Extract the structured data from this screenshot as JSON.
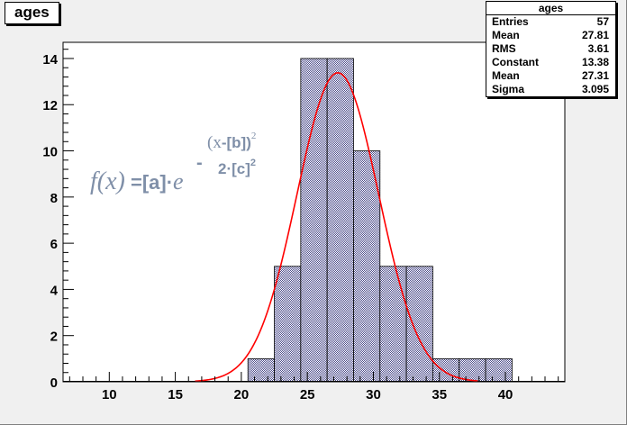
{
  "title": "ages",
  "stats": {
    "header": "ages",
    "rows": [
      {
        "label": "Entries",
        "value": "57"
      },
      {
        "label": "Mean",
        "value": "27.81"
      },
      {
        "label": "RMS",
        "value": "3.61"
      },
      {
        "label": "Constant",
        "value": "13.38"
      },
      {
        "label": "Mean",
        "value": "27.31"
      },
      {
        "label": "Sigma",
        "value": "3.095"
      }
    ]
  },
  "formula": {
    "lhs": "f(x)",
    "eq": " =",
    "a": "[a]",
    "dot": "·",
    "e": "e",
    "minus": "-",
    "num_x": "(x",
    "num_b": "-[b])",
    "num_sq": "2",
    "den": "2·[c]",
    "den_sq": "2"
  },
  "colors": {
    "fit_line": "#ff0000",
    "bar_fill": "#4d4d8c",
    "axis": "#000000"
  },
  "chart_data": {
    "type": "bar",
    "title": "ages",
    "xlim": [
      6.5,
      44.5
    ],
    "ylim": [
      0,
      14.7
    ],
    "bin_width": 2,
    "bins": [
      {
        "x_low": 20.5,
        "x_high": 22.5,
        "count": 1
      },
      {
        "x_low": 22.5,
        "x_high": 24.5,
        "count": 5
      },
      {
        "x_low": 24.5,
        "x_high": 26.5,
        "count": 14
      },
      {
        "x_low": 26.5,
        "x_high": 28.5,
        "count": 14
      },
      {
        "x_low": 28.5,
        "x_high": 30.5,
        "count": 10
      },
      {
        "x_low": 30.5,
        "x_high": 32.5,
        "count": 5
      },
      {
        "x_low": 32.5,
        "x_high": 34.5,
        "count": 5
      },
      {
        "x_low": 34.5,
        "x_high": 36.5,
        "count": 1
      },
      {
        "x_low": 36.5,
        "x_high": 38.5,
        "count": 1
      },
      {
        "x_low": 38.5,
        "x_high": 40.5,
        "count": 1
      }
    ],
    "x_ticks": [
      10,
      15,
      20,
      25,
      30,
      35,
      40
    ],
    "y_ticks": [
      0,
      2,
      4,
      6,
      8,
      10,
      12,
      14
    ],
    "fit": {
      "function": "gaus",
      "constant": 13.38,
      "mean": 27.31,
      "sigma": 3.095
    },
    "grid": false
  }
}
